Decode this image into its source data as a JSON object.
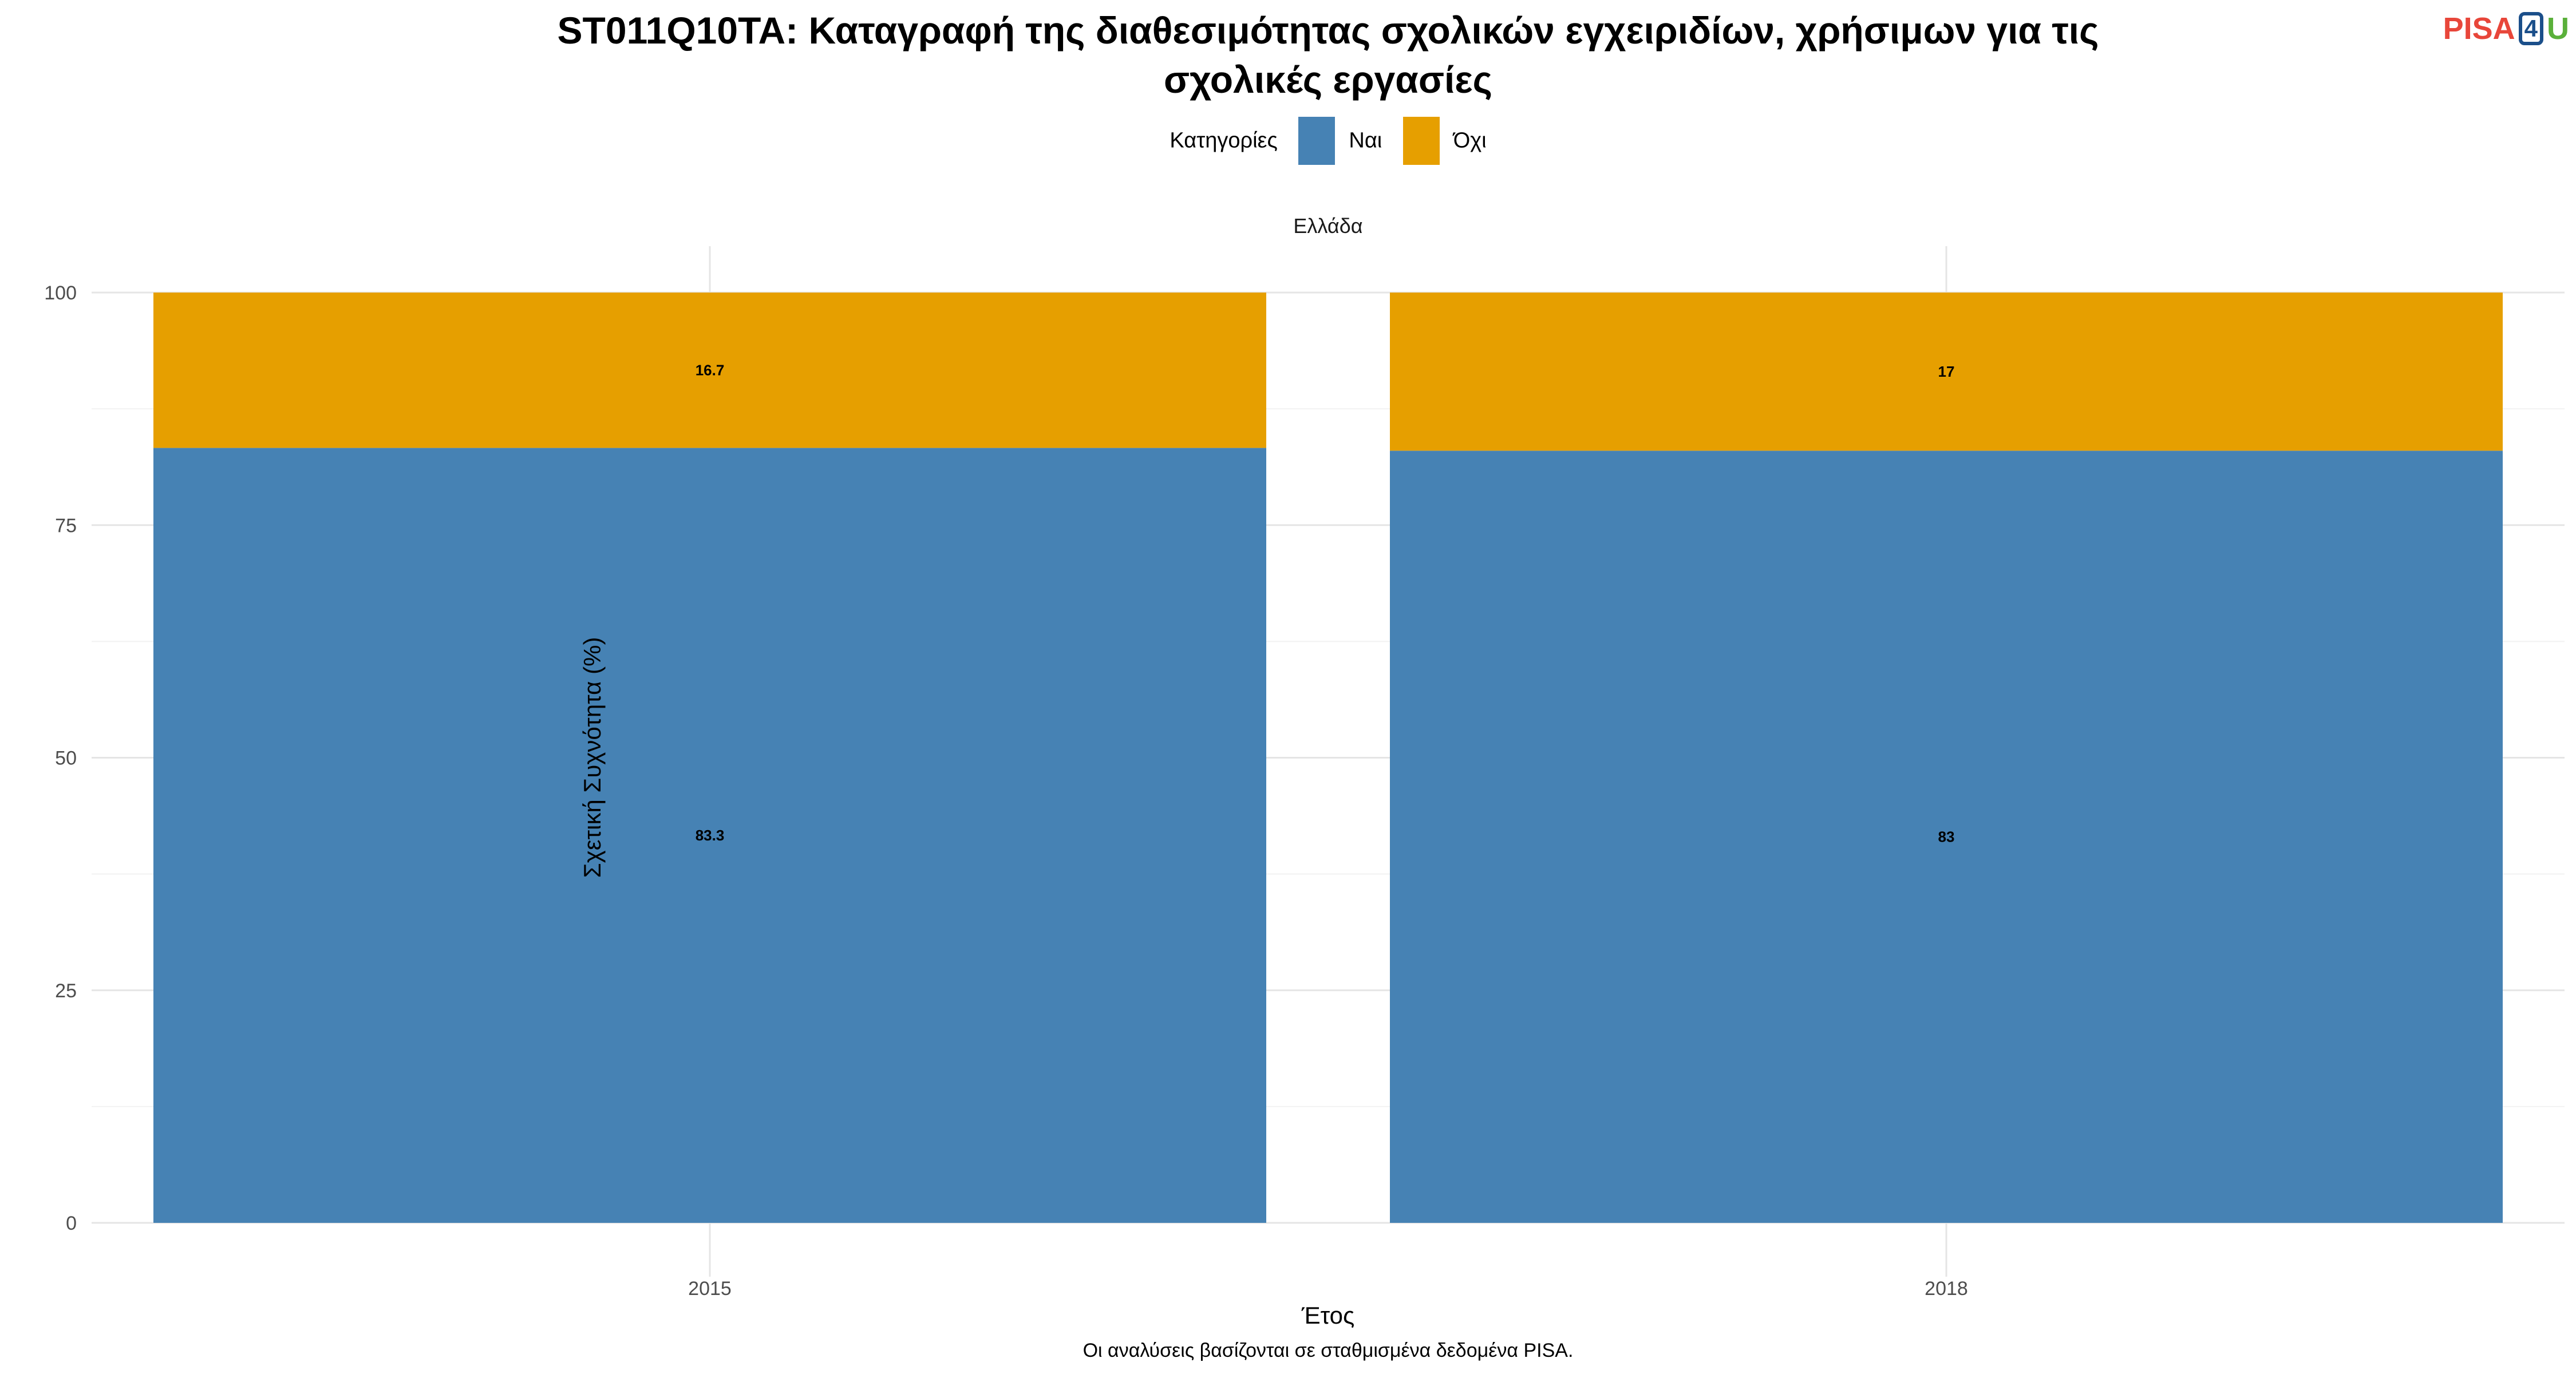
{
  "chart_data": {
    "type": "bar",
    "stacked": true,
    "title_lines": [
      "ST011Q10TA: Καταγραφή της διαθεσιμότητας σχολικών εγχειριδίων, χρήσιμων για τις",
      "σχολικές εργασίες"
    ],
    "facet": "Ελλάδα",
    "categories": [
      "2015",
      "2018"
    ],
    "series": [
      {
        "name": "Ναι",
        "color": "#4682b4",
        "values": [
          83.3,
          83
        ],
        "labels": [
          "83.3",
          "83"
        ]
      },
      {
        "name": "Όχι",
        "color": "#e69f00",
        "values": [
          16.7,
          17
        ],
        "labels": [
          "16.7",
          "17"
        ]
      }
    ],
    "ylim": [
      0,
      100
    ],
    "yticks": [
      0,
      25,
      50,
      75,
      100
    ],
    "xlabel": "Έτος",
    "ylabel": "Σχετική Συχνότητα (%)",
    "legend_title": "Κατηγορίες",
    "legend_position": "top",
    "grid": true,
    "caption": "Οι αναλύσεις βασίζονται σε σταθμισμένα δεδομένα PISA."
  },
  "logo": {
    "pisa": "PISA",
    "four": "4",
    "u": "U"
  }
}
